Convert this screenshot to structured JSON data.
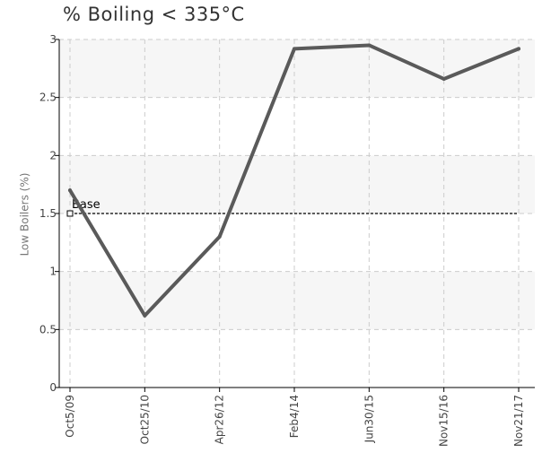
{
  "chart_data": {
    "type": "line",
    "title": "% Boiling < 335°C",
    "xlabel": "",
    "ylabel": "Low Boilers (%)",
    "categories": [
      "Oct5/09",
      "Oct25/10",
      "Apr26/12",
      "Feb4/14",
      "Jun30/15",
      "Nov15/16",
      "Nov21/17"
    ],
    "series": [
      {
        "values": [
          1.7,
          0.62,
          1.3,
          2.92,
          2.95,
          2.66,
          2.92
        ]
      }
    ],
    "reference_line": {
      "label": "Base",
      "value": 1.5
    },
    "yticks": [
      "0",
      "0.5",
      "1",
      "1.5",
      "2",
      "2.5",
      "3"
    ],
    "ylim": [
      0,
      3
    ],
    "grid": true,
    "legend": "none",
    "colors": {
      "line": "#5a5a5a",
      "band": "#f6f6f6",
      "grid": "#cccccc",
      "axis": "#000000",
      "reference": "#000000"
    }
  }
}
